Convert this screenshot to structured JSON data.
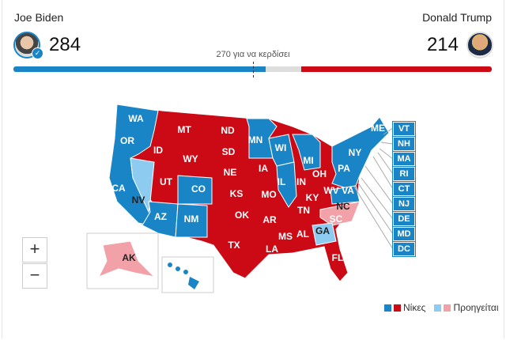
{
  "candidates": {
    "dem": {
      "name": "Joe Biden",
      "votes": "284",
      "color": "#1a85c6",
      "status": "winner-check-icon"
    },
    "rep": {
      "name": "Donald Trump",
      "votes": "214",
      "color": "#cc0a16"
    }
  },
  "goal_label": "270 για να κερδίσει",
  "progress": {
    "dem_votes": 284,
    "rep_votes": 214,
    "total": 538,
    "threshold": 270
  },
  "colors": {
    "dem_win": "#1a85c6",
    "rep_win": "#cc0a16",
    "dem_lead": "#8ecbf0",
    "rep_lead": "#f2a1a8"
  },
  "states": {
    "dem_win": [
      "WA",
      "OR",
      "CA",
      "AZ",
      "NM",
      "CO",
      "MN",
      "WI",
      "MI",
      "IL",
      "PA",
      "NY",
      "ME",
      "VA",
      "HI"
    ],
    "rep_win": [
      "MT",
      "ID",
      "WY",
      "UT",
      "ND",
      "SD",
      "NE",
      "KS",
      "OK",
      "TX",
      "IA",
      "MO",
      "AR",
      "LA",
      "IN",
      "OH",
      "KY",
      "TN",
      "MS",
      "AL",
      "FL",
      "SC",
      "WV"
    ],
    "dem_lead": [
      "NV",
      "GA"
    ],
    "rep_lead": [
      "NC",
      "AK"
    ]
  },
  "small_states": [
    "VT",
    "NH",
    "MA",
    "RI",
    "CT",
    "NJ",
    "DE",
    "MD",
    "DC"
  ],
  "zoom": {
    "in": "+",
    "out": "−"
  },
  "legend": {
    "wins": "Νίκες",
    "leading": "Προηγείται"
  }
}
